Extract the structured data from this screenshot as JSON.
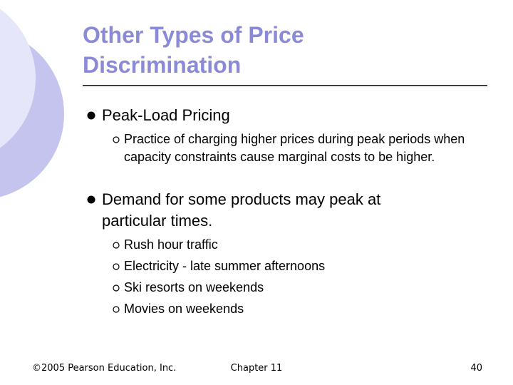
{
  "title": "Other Types of Price Discrimination",
  "bullets": [
    {
      "text": "Peak-Load Pricing",
      "sub": [
        "Practice of charging higher prices during peak periods when capacity constraints cause marginal costs to be higher."
      ]
    },
    {
      "text": "Demand for some products may peak at particular times.",
      "sub": [
        "Rush hour traffic",
        "Electricity - late summer afternoons",
        "Ski resorts on weekends",
        "Movies on weekends"
      ]
    }
  ],
  "footer": {
    "left": "©2005 Pearson Education, Inc.",
    "center": "Chapter 11",
    "right": "40"
  }
}
